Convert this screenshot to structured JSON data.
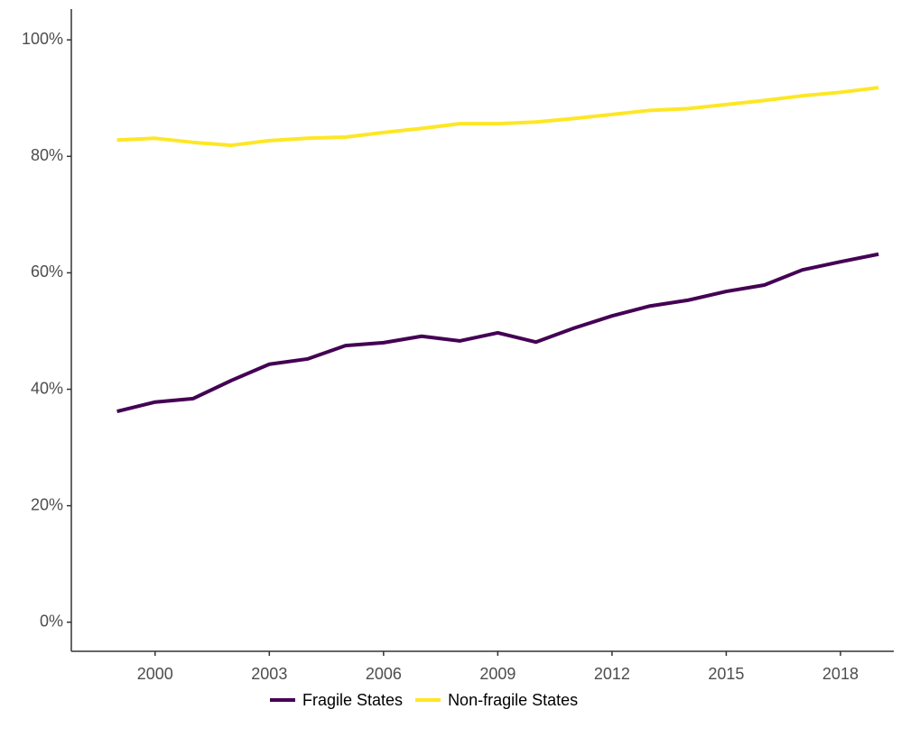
{
  "chart_data": {
    "type": "line",
    "x": [
      1999,
      2000,
      2001,
      2002,
      2003,
      2004,
      2005,
      2006,
      2007,
      2008,
      2009,
      2010,
      2011,
      2012,
      2013,
      2014,
      2015,
      2016,
      2017,
      2018,
      2019
    ],
    "series": [
      {
        "name": "Fragile States",
        "color": "#440154",
        "values": [
          36.2,
          37.8,
          38.4,
          41.5,
          44.3,
          45.2,
          47.5,
          48.0,
          49.1,
          48.3,
          49.7,
          48.1,
          50.5,
          52.6,
          54.3,
          55.3,
          56.8,
          57.9,
          60.5,
          61.9,
          63.2
        ]
      },
      {
        "name": "Non-fragile States",
        "color": "#fde725",
        "values": [
          82.8,
          83.1,
          82.4,
          81.9,
          82.7,
          83.1,
          83.3,
          84.1,
          84.8,
          85.6,
          85.6,
          85.9,
          86.5,
          87.2,
          87.9,
          88.2,
          88.9,
          89.6,
          90.4,
          91.0,
          91.8
        ]
      }
    ],
    "xlim": [
      1997.8,
      2019.4
    ],
    "xticks": [
      2000,
      2003,
      2006,
      2009,
      2012,
      2015,
      2018
    ],
    "ylim": [
      -5,
      105.3
    ],
    "yticks": [
      {
        "value": 0,
        "label": "0%"
      },
      {
        "value": 20,
        "label": "20%"
      },
      {
        "value": 40,
        "label": "40%"
      },
      {
        "value": 60,
        "label": "60%"
      },
      {
        "value": 80,
        "label": "80%"
      },
      {
        "value": 100,
        "label": "100%"
      }
    ],
    "legend": "bottom"
  }
}
